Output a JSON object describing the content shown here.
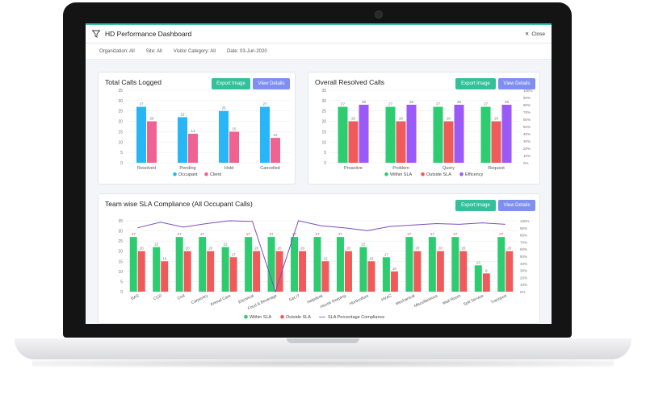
{
  "window": {
    "title": "HD Performance Dashboard",
    "close_label": "Close"
  },
  "filters": {
    "organization": "Organization: All",
    "site": "Site: All",
    "visitor_category": "Visitor Category: All",
    "date": "Date: 03-Jun-2020"
  },
  "buttons": {
    "export_label": "Export Image",
    "view_label": "View Details"
  },
  "colors": {
    "occupant": "#29b6f6",
    "client": "#f06292",
    "within_sla": "#2ecc71",
    "outside_sla": "#ef5b5b",
    "efficiency": "#9b59f6",
    "sla_line": "#7c4dbb",
    "accent": "#3bbfad"
  },
  "chart_data": [
    {
      "id": "total_calls",
      "type": "bar",
      "title": "Total Calls Logged",
      "categories": [
        "Resolved",
        "Pending",
        "Hold",
        "Cancelled"
      ],
      "series": [
        {
          "name": "Occupant",
          "values": [
            27,
            22,
            25,
            27
          ]
        },
        {
          "name": "Client",
          "values": [
            20,
            14,
            15,
            12
          ]
        }
      ],
      "yticks": [
        0,
        5,
        10,
        15,
        20,
        25,
        30,
        35
      ],
      "ylim": [
        0,
        35
      ],
      "legend_position": "bottom"
    },
    {
      "id": "resolved_calls",
      "type": "bar",
      "title": "Overall Resolved Calls",
      "categories": [
        "Proactive",
        "Problem",
        "Query",
        "Request"
      ],
      "series": [
        {
          "name": "Within SLA",
          "values": [
            27,
            27,
            27,
            27
          ]
        },
        {
          "name": "Outside SLA",
          "values": [
            20,
            20,
            20,
            20
          ]
        },
        {
          "name": "Efficency",
          "values": [
            28,
            28,
            28,
            28
          ]
        }
      ],
      "yticks": [
        0,
        5,
        10,
        15,
        20,
        25,
        30,
        35
      ],
      "ylim": [
        0,
        35
      ],
      "y2ticks": [
        "0%",
        "10%",
        "20%",
        "30%",
        "40%",
        "50%",
        "60%",
        "70%",
        "80%",
        "90%",
        "100%"
      ],
      "legend_position": "bottom"
    },
    {
      "id": "team_sla",
      "type": "bar",
      "title": "Team wise SLA Compliance (All Occupant Calls)",
      "categories": [
        "BAS",
        "CCD",
        "Civil",
        "Carpentry",
        "Animal Care",
        "Electrical",
        "Food & Beverage",
        "Get IT",
        "Helpdesk",
        "House Keeping",
        "Horticulture",
        "HVAC",
        "Mechanical",
        "Miscellaneous",
        "Mail Room",
        "Soft Service",
        "Transport"
      ],
      "series": [
        {
          "name": "Within SLA",
          "values": [
            27,
            22,
            27,
            27,
            22,
            27,
            27,
            27,
            27,
            27,
            22,
            17,
            27,
            27,
            27,
            13,
            27
          ]
        },
        {
          "name": "Outside SLA",
          "values": [
            20,
            15,
            20,
            20,
            17,
            20,
            20,
            20,
            15,
            20,
            15,
            10,
            20,
            20,
            20,
            9,
            20
          ]
        },
        {
          "name": "SLA Percentage Compliance",
          "type": "line",
          "values": [
            90,
            98,
            91,
            96,
            100,
            99,
            0,
            100,
            93,
            90,
            86,
            92,
            94,
            96,
            95,
            97,
            95
          ]
        }
      ],
      "yticks": [
        0,
        5,
        10,
        15,
        20,
        25,
        30,
        35
      ],
      "ylim": [
        0,
        35
      ],
      "y2ticks": [
        "0%",
        "10%",
        "20%",
        "30%",
        "40%",
        "50%",
        "60%",
        "70%",
        "80%",
        "90%",
        "100%"
      ],
      "legend_position": "bottom"
    }
  ]
}
